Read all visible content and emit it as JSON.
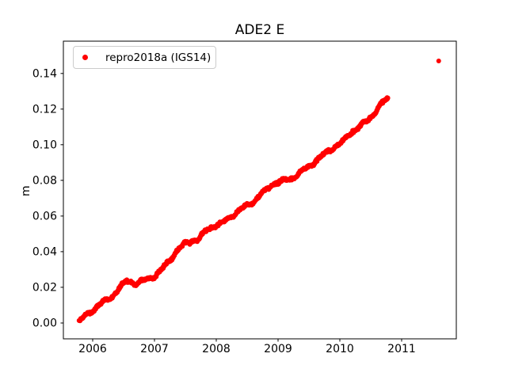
{
  "chart_data": {
    "type": "scatter",
    "title": "ADE2 E",
    "xlabel": "",
    "ylabel": "m",
    "background_color": "#ffffff",
    "axis_color": "#000000",
    "grid": false,
    "xlim": [
      2005.526,
      2011.885
    ],
    "ylim": [
      -0.0089,
      0.1581
    ],
    "xticks": [
      2006,
      2007,
      2008,
      2009,
      2010,
      2011
    ],
    "xtick_labels": [
      "2006",
      "2007",
      "2008",
      "2009",
      "2010",
      "2011"
    ],
    "yticks": [
      0.0,
      0.02,
      0.04,
      0.06,
      0.08,
      0.1,
      0.12,
      0.14
    ],
    "ytick_labels": [
      "0.00",
      "0.02",
      "0.04",
      "0.06",
      "0.08",
      "0.10",
      "0.12",
      "0.14"
    ],
    "legend": {
      "label": "repro2018a (IGS14)",
      "marker_color": "#ff0000",
      "position": "upper left",
      "border_color": "#cccccc"
    },
    "series": [
      {
        "name": "repro2018a (IGS14)",
        "color": "#ff0000",
        "marker": "circle",
        "marker_radius_px": 3,
        "t_start": 2005.78,
        "t_end": 2010.78,
        "sample_step_days": 2,
        "noise_sigma_m": 0.0011,
        "trend_anchors": [
          [
            2005.78,
            0.001
          ],
          [
            2005.88,
            0.004
          ],
          [
            2006.0,
            0.007
          ],
          [
            2006.12,
            0.0108
          ],
          [
            2006.22,
            0.0128
          ],
          [
            2006.32,
            0.0148
          ],
          [
            2006.45,
            0.0205
          ],
          [
            2006.55,
            0.0235
          ],
          [
            2006.68,
            0.022
          ],
          [
            2006.85,
            0.0242
          ],
          [
            2007.0,
            0.0262
          ],
          [
            2007.13,
            0.0305
          ],
          [
            2007.26,
            0.0355
          ],
          [
            2007.4,
            0.042
          ],
          [
            2007.55,
            0.0455
          ],
          [
            2007.7,
            0.0465
          ],
          [
            2007.83,
            0.0515
          ],
          [
            2007.96,
            0.0545
          ],
          [
            2008.09,
            0.056
          ],
          [
            2008.22,
            0.059
          ],
          [
            2008.35,
            0.0625
          ],
          [
            2008.47,
            0.0655
          ],
          [
            2008.6,
            0.068
          ],
          [
            2008.75,
            0.073
          ],
          [
            2008.9,
            0.0775
          ],
          [
            2009.0,
            0.079
          ],
          [
            2009.12,
            0.08
          ],
          [
            2009.25,
            0.0815
          ],
          [
            2009.4,
            0.0855
          ],
          [
            2009.55,
            0.089
          ],
          [
            2009.7,
            0.0935
          ],
          [
            2009.82,
            0.0965
          ],
          [
            2009.95,
            0.0995
          ],
          [
            2010.06,
            0.102
          ],
          [
            2010.15,
            0.106
          ],
          [
            2010.28,
            0.109
          ],
          [
            2010.4,
            0.1125
          ],
          [
            2010.52,
            0.116
          ],
          [
            2010.62,
            0.1205
          ],
          [
            2010.72,
            0.1245
          ],
          [
            2010.78,
            0.126
          ]
        ],
        "outliers": [
          [
            2011.6,
            0.147
          ]
        ]
      }
    ]
  }
}
